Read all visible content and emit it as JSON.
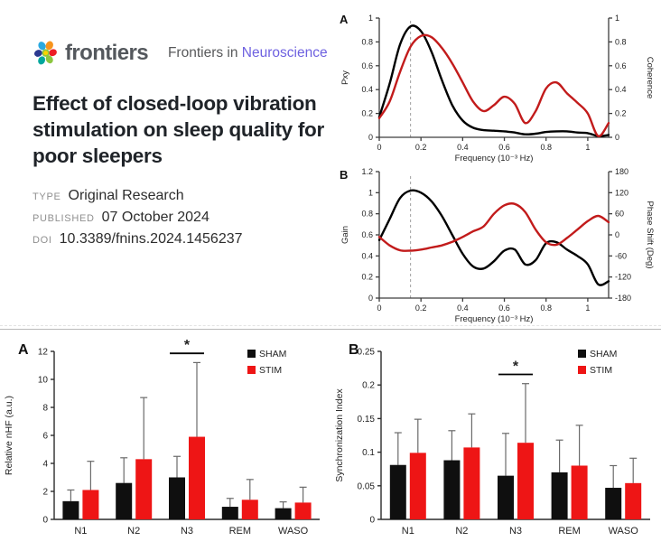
{
  "header": {
    "logo_text": "frontiers",
    "journal_prefix": "Frontiers in",
    "journal_name": "Neuroscience",
    "title": "Effect of closed-loop vibration stimulation on sleep quality for poor sleepers",
    "meta": [
      {
        "label": "TYPE",
        "value": "Original Research"
      },
      {
        "label": "PUBLISHED",
        "value": "07 October 2024"
      },
      {
        "label": "DOI",
        "value": "10.3389/fnins.2024.1456237"
      }
    ]
  },
  "colors": {
    "accent_purple": "#6e61e0",
    "logo_gray": "#54585d",
    "line_red": "#c21b1b",
    "line_black": "#000000",
    "bar_red": "#ee1515",
    "bar_black": "#0f0f0f",
    "error_bar": "#6a6a6a",
    "dashed_guide": "#a0a0a0"
  },
  "chart_data": [
    {
      "type": "line",
      "panel": "A",
      "xlabel": "Frequency (10⁻³ Hz)",
      "ylabel_left": "Pxy",
      "ylabel_right": "Coherence",
      "xlim": [
        0,
        1.1
      ],
      "ylim_left": [
        0,
        1
      ],
      "ylim_right": [
        0,
        1
      ],
      "xticks": [
        "0",
        "0.2",
        "0.4",
        "0.6",
        "0.8",
        "1"
      ],
      "yticks_left": [
        "0",
        "0.2",
        "0.4",
        "0.6",
        "0.8",
        "1"
      ],
      "yticks_right": [
        "0",
        "0.2",
        "0.4",
        "0.6",
        "0.8",
        "1"
      ],
      "dashed_x": 0.15,
      "grid": false,
      "series": [
        {
          "name": "Pxy",
          "axis": "left",
          "color": "#000000",
          "x": [
            0,
            0.05,
            0.1,
            0.15,
            0.2,
            0.25,
            0.3,
            0.35,
            0.4,
            0.45,
            0.5,
            0.55,
            0.6,
            0.65,
            0.7,
            0.75,
            0.8,
            0.85,
            0.9,
            0.95,
            1,
            1.05,
            1.1
          ],
          "y": [
            0.17,
            0.45,
            0.78,
            0.93,
            0.89,
            0.72,
            0.48,
            0.27,
            0.14,
            0.08,
            0.06,
            0.055,
            0.05,
            0.04,
            0.025,
            0.03,
            0.045,
            0.05,
            0.05,
            0.04,
            0.035,
            0.01,
            0.02
          ]
        },
        {
          "name": "Coherence",
          "axis": "right",
          "color": "#c21b1b",
          "x": [
            0,
            0.05,
            0.1,
            0.15,
            0.2,
            0.25,
            0.3,
            0.35,
            0.4,
            0.45,
            0.5,
            0.55,
            0.6,
            0.65,
            0.7,
            0.75,
            0.8,
            0.85,
            0.9,
            0.95,
            1,
            1.05,
            1.1
          ],
          "y": [
            0.16,
            0.3,
            0.55,
            0.76,
            0.85,
            0.84,
            0.75,
            0.62,
            0.46,
            0.3,
            0.22,
            0.27,
            0.34,
            0.28,
            0.12,
            0.22,
            0.41,
            0.46,
            0.37,
            0.29,
            0.2,
            0.01,
            0.12
          ]
        }
      ]
    },
    {
      "type": "line",
      "panel": "B",
      "xlabel": "Frequency (10⁻³ Hz)",
      "ylabel_left": "Gain",
      "ylabel_right": "Phase Shift (Deg)",
      "xlim": [
        0,
        1.1
      ],
      "ylim_left": [
        0,
        1.2
      ],
      "ylim_right": [
        -180,
        180
      ],
      "xticks": [
        "0",
        "0.2",
        "0.4",
        "0.6",
        "0.8",
        "1"
      ],
      "yticks_left": [
        "0",
        "0.2",
        "0.4",
        "0.6",
        "0.8",
        "1",
        "1.2"
      ],
      "yticks_right": [
        "-180",
        "-120",
        "-60",
        "0",
        "60",
        "120",
        "180"
      ],
      "dashed_x": 0.15,
      "grid": false,
      "series": [
        {
          "name": "Gain",
          "axis": "left",
          "color": "#000000",
          "x": [
            0,
            0.05,
            0.1,
            0.15,
            0.2,
            0.25,
            0.3,
            0.35,
            0.4,
            0.45,
            0.5,
            0.55,
            0.6,
            0.65,
            0.7,
            0.75,
            0.8,
            0.85,
            0.9,
            0.95,
            1,
            1.05,
            1.1
          ],
          "y": [
            0.55,
            0.75,
            0.95,
            1.02,
            1.0,
            0.92,
            0.78,
            0.6,
            0.42,
            0.3,
            0.28,
            0.35,
            0.45,
            0.46,
            0.32,
            0.36,
            0.52,
            0.53,
            0.46,
            0.4,
            0.32,
            0.13,
            0.16
          ]
        },
        {
          "name": "Phase Shift",
          "axis": "right",
          "color": "#c21b1b",
          "x": [
            0,
            0.05,
            0.1,
            0.15,
            0.2,
            0.25,
            0.3,
            0.35,
            0.4,
            0.45,
            0.5,
            0.55,
            0.6,
            0.65,
            0.7,
            0.75,
            0.8,
            0.85,
            0.9,
            0.95,
            1,
            1.05,
            1.1
          ],
          "y": [
            -6,
            -30,
            -44,
            -45,
            -42,
            -36,
            -30,
            -20,
            -6,
            10,
            24,
            60,
            84,
            88,
            65,
            15,
            -21,
            -28,
            -9,
            15,
            39,
            54,
            36
          ]
        }
      ]
    },
    {
      "type": "bar",
      "panel": "A",
      "ylabel": "Relative nHF (a.u.)",
      "ylim": [
        0,
        12
      ],
      "yticks": [
        "0",
        "2",
        "4",
        "6",
        "8",
        "10",
        "12"
      ],
      "categories": [
        "N1",
        "N2",
        "N3",
        "REM",
        "WASO"
      ],
      "legend_position": "top-right",
      "series": [
        {
          "name": "SHAM",
          "color": "#0f0f0f",
          "values": [
            1.3,
            2.6,
            3.0,
            0.9,
            0.8
          ],
          "errors_up": [
            0.8,
            1.8,
            1.5,
            0.6,
            0.45
          ]
        },
        {
          "name": "STIM",
          "color": "#ee1515",
          "values": [
            2.1,
            4.3,
            5.9,
            1.4,
            1.2
          ],
          "errors_up": [
            2.05,
            4.4,
            5.3,
            1.45,
            1.1
          ]
        }
      ],
      "significance": {
        "category": "N3",
        "label": "*"
      }
    },
    {
      "type": "bar",
      "panel": "B",
      "ylabel": "Synchronization Index",
      "ylim": [
        0,
        0.25
      ],
      "yticks": [
        "0",
        "0.05",
        "0.1",
        "0.15",
        "0.2",
        "0.25"
      ],
      "categories": [
        "N1",
        "N2",
        "N3",
        "REM",
        "WASO"
      ],
      "legend_position": "top-right",
      "series": [
        {
          "name": "SHAM",
          "color": "#0f0f0f",
          "values": [
            0.081,
            0.088,
            0.065,
            0.07,
            0.047
          ],
          "errors_up": [
            0.048,
            0.044,
            0.063,
            0.048,
            0.033
          ]
        },
        {
          "name": "STIM",
          "color": "#ee1515",
          "values": [
            0.099,
            0.107,
            0.114,
            0.08,
            0.054
          ],
          "errors_up": [
            0.05,
            0.05,
            0.088,
            0.06,
            0.037
          ]
        }
      ],
      "significance": {
        "category": "N3",
        "label": "*"
      }
    }
  ]
}
